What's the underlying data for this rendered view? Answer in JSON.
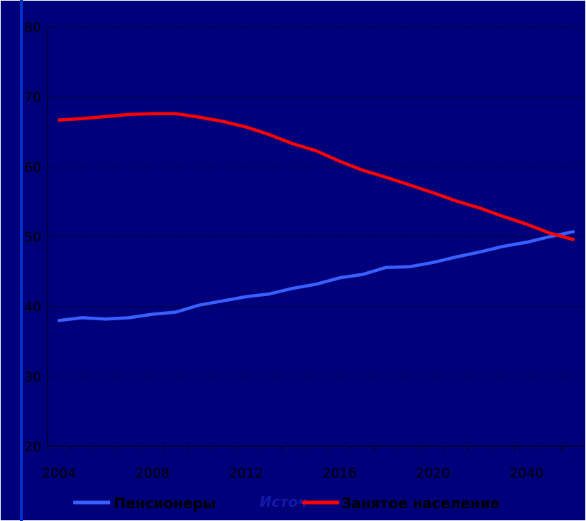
{
  "chart_data": {
    "type": "line",
    "title": "",
    "xlabel": "",
    "ylabel": "",
    "ylim": [
      20,
      80
    ],
    "yticks": [
      "20",
      "30",
      "40",
      "50",
      "60",
      "70",
      "80"
    ],
    "xtick_labels": [
      "2004",
      "2008",
      "2012",
      "2016",
      "2020",
      "2040"
    ],
    "grid": true,
    "legend_position": "bottom",
    "x": [
      1,
      2,
      3,
      4,
      5,
      6,
      7,
      8,
      9,
      10,
      11,
      12,
      13,
      14,
      15,
      16,
      17,
      18,
      19,
      20,
      21,
      22,
      23
    ],
    "series": [
      {
        "name": "Пенсионеры",
        "color": "#3a5fff",
        "values": [
          38.0,
          38.4,
          38.2,
          38.4,
          38.9,
          39.2,
          40.2,
          40.8,
          41.4,
          41.8,
          42.6,
          43.2,
          44.1,
          44.6,
          45.6,
          45.7,
          46.3,
          47.1,
          47.8,
          48.6,
          49.2,
          50.0,
          50.7
        ]
      },
      {
        "name": "Занятое население",
        "color": "#ff0000",
        "values": [
          66.7,
          66.9,
          67.2,
          67.5,
          67.6,
          67.6,
          67.1,
          66.5,
          65.7,
          64.6,
          63.3,
          62.3,
          60.8,
          59.5,
          58.5,
          57.4,
          56.3,
          55.1,
          54.1,
          52.9,
          51.8,
          50.5,
          49.6
        ]
      }
    ],
    "ghost_text": "Источ"
  }
}
